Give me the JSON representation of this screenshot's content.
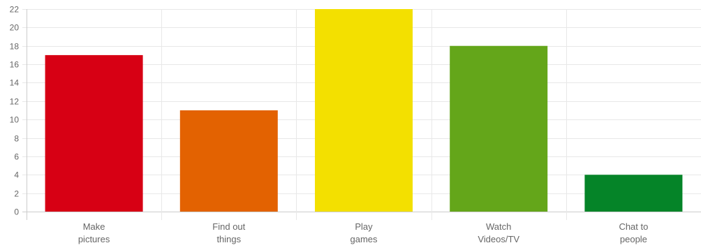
{
  "chart_data": {
    "type": "bar",
    "categories": [
      [
        "Make",
        "pictures"
      ],
      [
        "Find out",
        "things"
      ],
      [
        "Play",
        "games"
      ],
      [
        "Watch",
        "Videos/TV"
      ],
      [
        "Chat to",
        "people"
      ]
    ],
    "values": [
      17,
      11,
      22,
      18,
      4
    ],
    "colors": [
      "#d70014",
      "#e36201",
      "#f3e000",
      "#64a61a",
      "#058428"
    ],
    "ylim": [
      0,
      22
    ],
    "yticks": [
      0,
      2,
      4,
      6,
      8,
      10,
      12,
      14,
      16,
      18,
      20,
      22
    ],
    "grid": true,
    "legend": "none",
    "title": "",
    "xlabel": "",
    "ylabel": ""
  }
}
